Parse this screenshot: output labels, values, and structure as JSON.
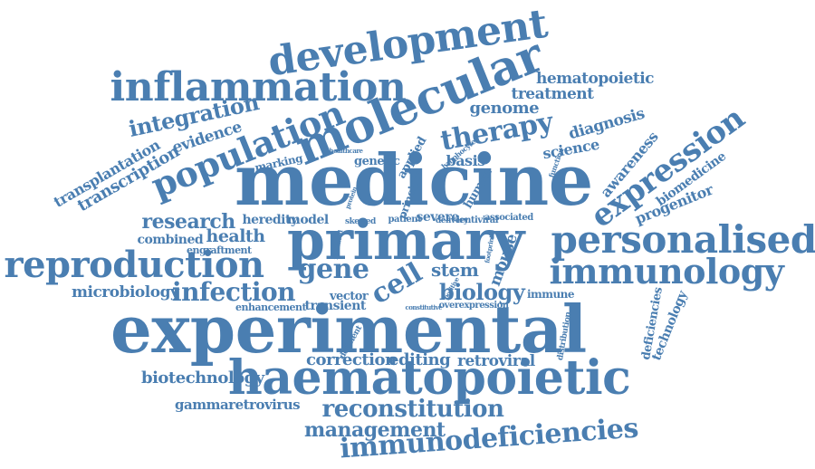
{
  "theme": {
    "word_color": "#4a7eb1"
  },
  "words": [
    "medicine",
    "primary",
    "experimental",
    "haematopoietic",
    "molecular",
    "development",
    "inflammation",
    "personalised",
    "reproduction",
    "immunology",
    "immunodeficiencies",
    "population",
    "therapy",
    "gene",
    "expression",
    "infection",
    "cell",
    "reconstitution",
    "biology",
    "integration",
    "research",
    "management",
    "genome",
    "hematopoietic",
    "treatment",
    "diagnosis",
    "science",
    "transcription",
    "transplantation",
    "evidence",
    "biotechnology",
    "microbiology",
    "correction",
    "editing",
    "retroviral",
    "gammaretrovirus",
    "stem",
    "mouse",
    "awareness",
    "biomedicine",
    "progenitor",
    "technology",
    "deficiencies",
    "health",
    "combined",
    "heredity",
    "model",
    "severe",
    "engraftment",
    "vector",
    "transient",
    "enhancement",
    "marking",
    "genetic",
    "applied",
    "basis",
    "human",
    "principle",
    "patient",
    "skewed",
    "associated",
    "immune",
    "lentiviral",
    "delivery",
    "overexpression",
    "deficient",
    "distribution",
    "constitutive",
    "function",
    "lymphocyte",
    "healthcare",
    "protein",
    "mediated",
    "footprint",
    "positive"
  ]
}
